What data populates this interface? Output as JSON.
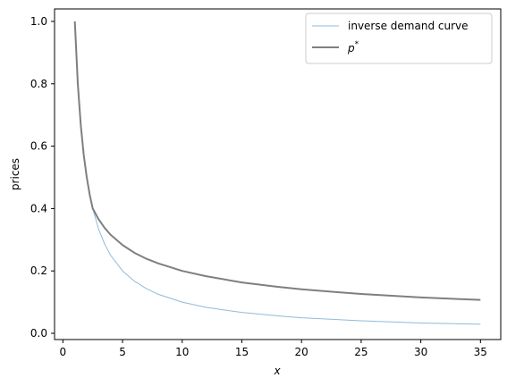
{
  "chart_data": {
    "type": "line",
    "xlabel": "x",
    "ylabel": "prices",
    "xlim": [
      -0.7,
      36.7
    ],
    "ylim": [
      -0.02,
      1.04
    ],
    "xticks": [
      0,
      5,
      10,
      15,
      20,
      25,
      30,
      35
    ],
    "yticks": [
      0.0,
      0.2,
      0.4,
      0.6,
      0.8,
      1.0
    ],
    "grid": false,
    "legend_position": "top-right",
    "series": [
      {
        "name": "inverse demand curve",
        "color": "#8fbbd9",
        "x": [
          1,
          1.25,
          1.5,
          1.75,
          2,
          2.25,
          2.5,
          3,
          3.5,
          4,
          5,
          6,
          7,
          8,
          10,
          12,
          15,
          18,
          20,
          25,
          30,
          35
        ],
        "y": [
          1.0,
          0.8,
          0.667,
          0.571,
          0.5,
          0.444,
          0.4,
          0.333,
          0.286,
          0.25,
          0.2,
          0.167,
          0.143,
          0.125,
          0.1,
          0.083,
          0.067,
          0.056,
          0.05,
          0.04,
          0.033,
          0.029
        ]
      },
      {
        "name": "p*",
        "name_base": "p",
        "name_sup": "*",
        "color": "#7f7f7f",
        "x": [
          1,
          1.25,
          1.5,
          1.75,
          2,
          2.25,
          2.5,
          3,
          3.5,
          4,
          5,
          6,
          7,
          8,
          10,
          12,
          15,
          18,
          20,
          25,
          30,
          35
        ],
        "y": [
          1.0,
          0.8,
          0.667,
          0.571,
          0.5,
          0.444,
          0.4,
          0.365,
          0.338,
          0.316,
          0.283,
          0.258,
          0.239,
          0.224,
          0.2,
          0.183,
          0.163,
          0.149,
          0.141,
          0.126,
          0.115,
          0.107
        ]
      }
    ]
  }
}
